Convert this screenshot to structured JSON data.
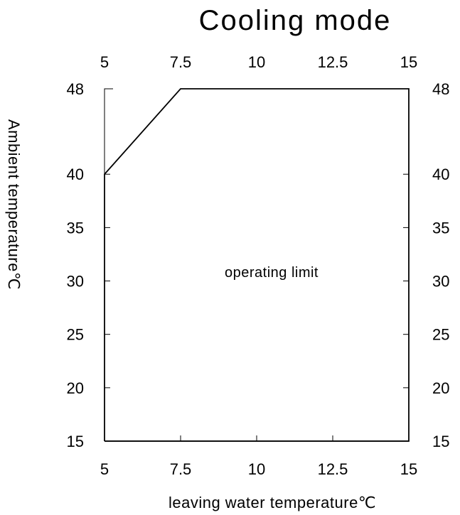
{
  "chart_data": {
    "type": "area",
    "title": "Cooling mode",
    "xlabel": "leaving water temperature℃",
    "ylabel": "Ambient temperature℃",
    "xlim": [
      5,
      15
    ],
    "ylim": [
      15,
      48
    ],
    "x_ticks": [
      5,
      7.5,
      10,
      12.5,
      15
    ],
    "x_tick_labels": [
      "5",
      "7.5",
      "10",
      "12.5",
      "15"
    ],
    "y_ticks": [
      15,
      20,
      25,
      30,
      35,
      40,
      48
    ],
    "y_tick_labels": [
      "15",
      "20",
      "25",
      "30",
      "35",
      "40",
      "48"
    ],
    "grid": false,
    "region_boundary": {
      "x": [
        5,
        5,
        7.5,
        15,
        15,
        5
      ],
      "y": [
        15,
        40,
        48,
        48,
        15,
        15
      ]
    },
    "annotation": "operating limit"
  }
}
